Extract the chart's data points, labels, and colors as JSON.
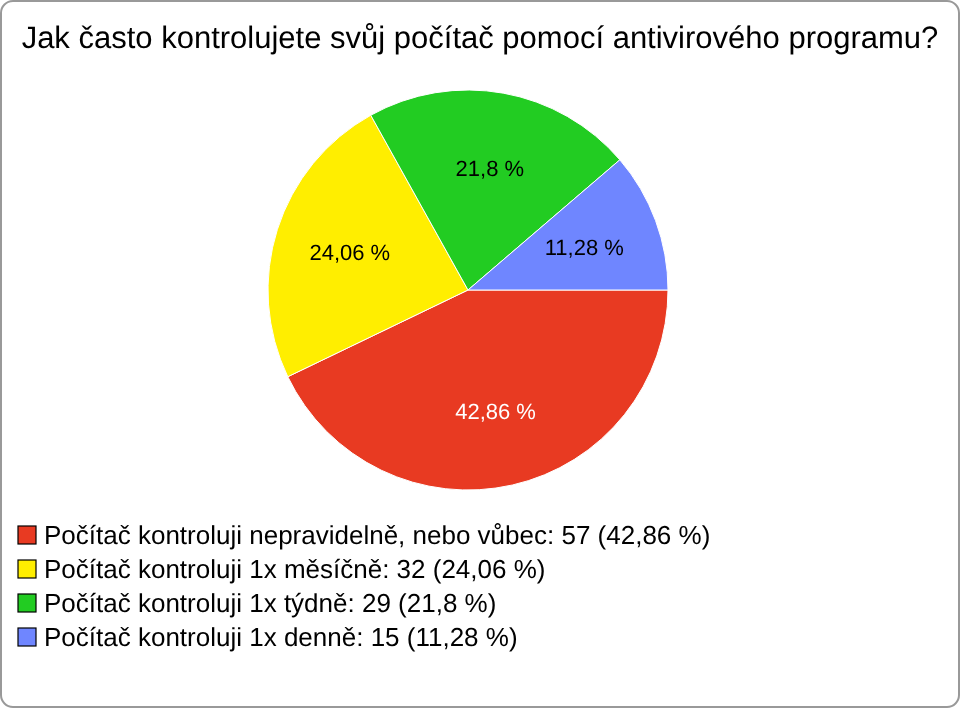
{
  "chart_data": {
    "type": "pie",
    "title": "Jak často kontrolujete svůj počítač pomocí antivirového programu?",
    "categories": [
      "Počítač kontroluji nepravidelně, nebo vůbec: 57 (42,86 %)",
      "Počítač kontroluji 1x měsíčně: 32 (24,06 %)",
      "Počítač kontroluji 1x týdně: 29 (21,8 %)",
      "Počítač kontroluji 1x denně: 15 (11,28 %)"
    ],
    "values": [
      42.86,
      24.06,
      21.8,
      11.28
    ],
    "colors": [
      "#e83a22",
      "#ffee00",
      "#22cc22",
      "#6f86ff"
    ],
    "value_labels": [
      "42,86 %",
      "24,06 %",
      "21,8 %",
      "11,28 %"
    ],
    "legend": "bottom"
  }
}
